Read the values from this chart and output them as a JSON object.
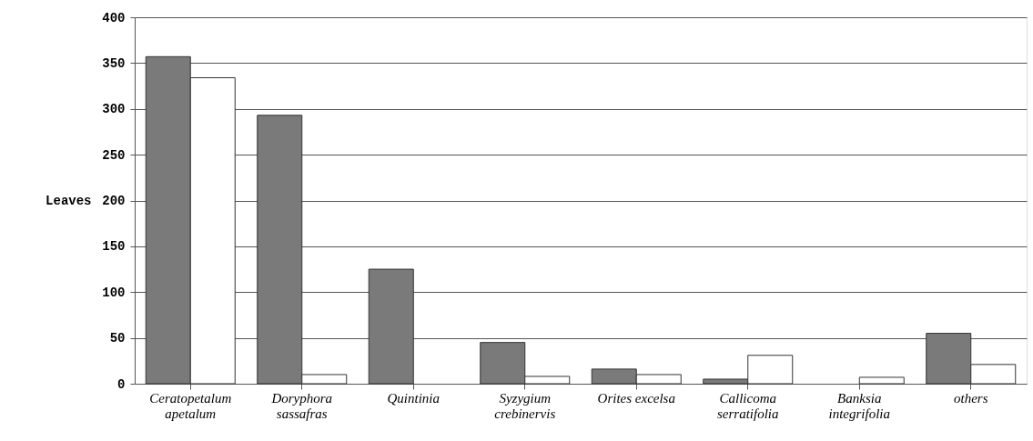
{
  "chart_data": {
    "type": "bar",
    "ylabel": "Leaves",
    "categories": [
      "Ceratopetalum\napetalum",
      "Doryphora\nsassafras",
      "Quintinia",
      "Syzygium\ncrebinervis",
      "Orites excelsa",
      "Callicoma\nserratifolia",
      "Banksia\nintegrifolia",
      "others"
    ],
    "series": [
      {
        "color": "#7a7a7a",
        "values": [
          357,
          293,
          125,
          45,
          16,
          5,
          0,
          55
        ]
      },
      {
        "color": "#ffffff",
        "values": [
          334,
          10,
          0,
          8,
          10,
          31,
          7,
          21
        ]
      }
    ],
    "ylim": [
      0,
      400
    ],
    "yticks": [
      0,
      50,
      100,
      150,
      200,
      250,
      300,
      350,
      400
    ],
    "grid": "y"
  }
}
